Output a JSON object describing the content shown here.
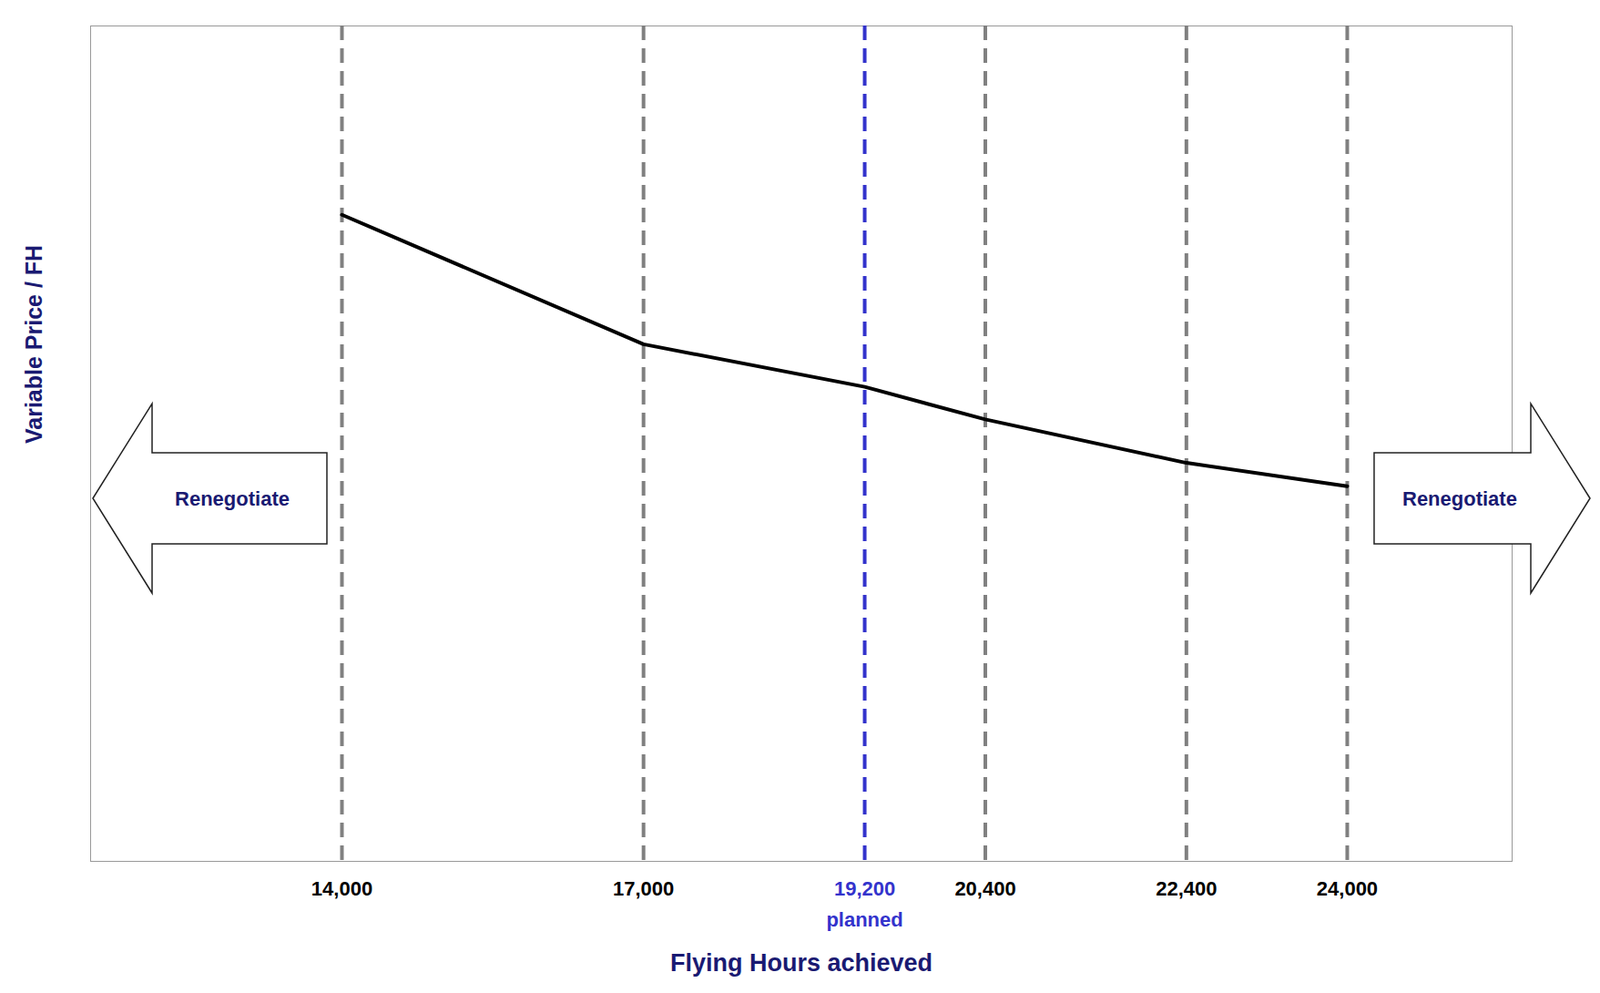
{
  "chart_data": {
    "type": "line",
    "x_label": "Flying Hours achieved",
    "y_label": "Variable Price / FH",
    "x": [
      14000,
      17000,
      19200,
      20400,
      22400,
      24000
    ],
    "values": [
      77.4,
      61.9,
      56.8,
      52.9,
      47.7,
      44.9
    ],
    "color": "#000000",
    "line_style": "solid",
    "xlim": [
      11500,
      25640
    ],
    "ylim": [
      0,
      100
    ],
    "xticks": [
      {
        "value": 14000,
        "label": "14,000"
      },
      {
        "value": 17000,
        "label": "17,000"
      },
      {
        "value": 19200,
        "label": "19,200"
      },
      {
        "value": 20400,
        "label": "20,400"
      },
      {
        "value": 22400,
        "label": "22,400"
      },
      {
        "value": 24000,
        "label": "24,000"
      }
    ],
    "yticks": [],
    "tick_labels": "x",
    "grid": true,
    "annotations": [
      {
        "text": "planned",
        "x": 19200,
        "color": "#3333cc"
      },
      {
        "text": "Renegotiate",
        "side": "left"
      },
      {
        "text": "Renegotiate",
        "side": "right"
      }
    ]
  }
}
